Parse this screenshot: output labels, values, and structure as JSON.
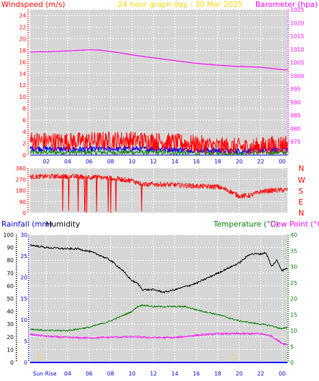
{
  "header": {
    "left_title": "Windspeed (m/s)",
    "center_title": "24 hour graph day : 30 Mar 2025",
    "right_title": "Barometer (hpa)"
  },
  "bottom_header": {
    "rainfall": "Rainfall (mm)",
    "humidity": "Humidity",
    "temperature": "Temperature (°C)",
    "dew_point": "Dew Point (°C)"
  },
  "x_ticks": [
    "02",
    "04",
    "06",
    "08",
    "10",
    "12",
    "14",
    "16",
    "18",
    "20",
    "22",
    "00"
  ],
  "sunrise_label": "Sun Rise",
  "direction_labels": [
    "N",
    "W",
    "S",
    "E",
    "N"
  ],
  "colors": {
    "wind": "#ff0000",
    "wind_avg": "#0000ff",
    "wind_low": "#008000",
    "barometer": "#ff00ff",
    "direction": "#ff0000",
    "humidity": "#000000",
    "temperature": "#008000",
    "dewpoint": "#ff00ff",
    "rainfall": "#0000ff",
    "plot_bg": "#d6d6d6",
    "grid": "#ffffff"
  },
  "chart_data": [
    {
      "type": "line",
      "title": "24 hour graph day : 30 Mar 2025",
      "xlabel": "",
      "ylabel": "Windspeed (m/s)",
      "y2label": "Barometer (hpa)",
      "x_range_hours": [
        0.5,
        24.5
      ],
      "ylim": [
        0,
        25
      ],
      "yticks": [
        0,
        2,
        4,
        6,
        8,
        10,
        12,
        14,
        16,
        18,
        20,
        22,
        24
      ],
      "y2lim": [
        970,
        1025
      ],
      "y2ticks": [
        975,
        980,
        985,
        990,
        995,
        1000,
        1005,
        1010,
        1015,
        1020,
        1025
      ],
      "series": [
        {
          "name": "Barometer",
          "axis": "right",
          "x": [
            0.5,
            2,
            4,
            5,
            6,
            7,
            8,
            9,
            10,
            11,
            12,
            14,
            16,
            18,
            20,
            21,
            22,
            23,
            24,
            24.5
          ],
          "y": [
            1009.0,
            1009.1,
            1009.4,
            1009.6,
            1009.8,
            1009.7,
            1009.2,
            1008.6,
            1007.9,
            1007.3,
            1006.8,
            1005.7,
            1004.7,
            1004.0,
            1003.5,
            1003.4,
            1003.2,
            1002.8,
            1002.3,
            1002.2
          ]
        },
        {
          "name": "Wind gust",
          "axis": "left",
          "x": [
            0.5,
            3,
            6,
            9,
            12,
            15,
            18,
            21,
            24.5
          ],
          "y": [
            2.5,
            2.3,
            2.4,
            2.6,
            2.4,
            2.0,
            1.5,
            1.3,
            2.0
          ]
        },
        {
          "name": "Wind average",
          "axis": "left",
          "x": [
            0.5,
            4,
            8,
            12,
            16,
            20,
            24.5
          ],
          "y": [
            1.2,
            1.0,
            1.1,
            1.1,
            0.9,
            0.7,
            1.1
          ]
        },
        {
          "name": "Wind low",
          "axis": "left",
          "x": [
            0.5,
            4,
            8,
            12,
            16,
            20,
            24.5
          ],
          "y": [
            0.5,
            0.5,
            0.5,
            0.5,
            0.4,
            0.4,
            0.5
          ]
        }
      ]
    },
    {
      "type": "line",
      "title": "",
      "ylabel": "",
      "ylim": [
        0,
        360
      ],
      "yticks": [
        0,
        90,
        180,
        270,
        360
      ],
      "series": [
        {
          "name": "Wind direction",
          "x": [
            0.5,
            3,
            6,
            8,
            10,
            11,
            12,
            14,
            16,
            18,
            19,
            20,
            21,
            22,
            23,
            24.5
          ],
          "y": [
            290,
            295,
            290,
            280,
            260,
            230,
            230,
            225,
            215,
            210,
            180,
            135,
            140,
            170,
            180,
            185
          ]
        }
      ]
    },
    {
      "type": "line",
      "title": "",
      "ylabel": "Rainfall (mm)",
      "y2label": "Temperature (°C)",
      "ylim": [
        0,
        30
      ],
      "yticks": [
        0,
        5,
        10,
        15,
        20,
        25,
        30
      ],
      "y0lim": [
        0,
        100
      ],
      "y0ticks": [
        0,
        10,
        20,
        30,
        40,
        50,
        60,
        70,
        80,
        90,
        100
      ],
      "y2lim": [
        0,
        40
      ],
      "y2ticks": [
        0,
        5,
        10,
        15,
        20,
        25,
        30,
        35,
        40
      ],
      "series": [
        {
          "name": "Humidity",
          "axis": "humidity",
          "x": [
            0.5,
            2,
            4,
            5,
            6,
            7,
            8,
            9,
            10,
            10.5,
            11,
            12,
            13,
            14,
            16,
            18,
            20,
            21,
            22,
            22.5,
            23,
            23.5,
            24,
            24.5
          ],
          "y": [
            92,
            90,
            89,
            89,
            87,
            84,
            80,
            73,
            64,
            62,
            57,
            57,
            55,
            57,
            62,
            70,
            78,
            85,
            85,
            86,
            75,
            80,
            72,
            74
          ]
        },
        {
          "name": "Temperature",
          "axis": "right",
          "x": [
            0.5,
            2,
            4,
            5,
            6,
            7,
            8,
            9,
            10,
            10.5,
            11,
            12,
            14,
            15,
            16,
            18,
            20,
            21,
            22,
            23,
            24,
            24.5
          ],
          "y": [
            10.5,
            10.0,
            10.0,
            10.5,
            11.0,
            12.0,
            13.0,
            14.5,
            16.0,
            17.5,
            18.0,
            17.5,
            17.5,
            17.5,
            16.5,
            15.0,
            13.0,
            12.5,
            12.0,
            11.5,
            10.5,
            11.0
          ]
        },
        {
          "name": "Dew Point",
          "axis": "right",
          "x": [
            0.5,
            2,
            4,
            6,
            8,
            10,
            12,
            14,
            16,
            18,
            20,
            22,
            23,
            24,
            24.5
          ],
          "y": [
            8.8,
            8.2,
            7.8,
            7.7,
            7.9,
            8.0,
            7.8,
            7.8,
            8.5,
            9.0,
            9.0,
            9.0,
            8.3,
            6.0,
            5.6
          ]
        },
        {
          "name": "Rainfall",
          "axis": "left",
          "x": [
            0.5,
            24.5
          ],
          "y": [
            0,
            0
          ]
        }
      ]
    }
  ]
}
